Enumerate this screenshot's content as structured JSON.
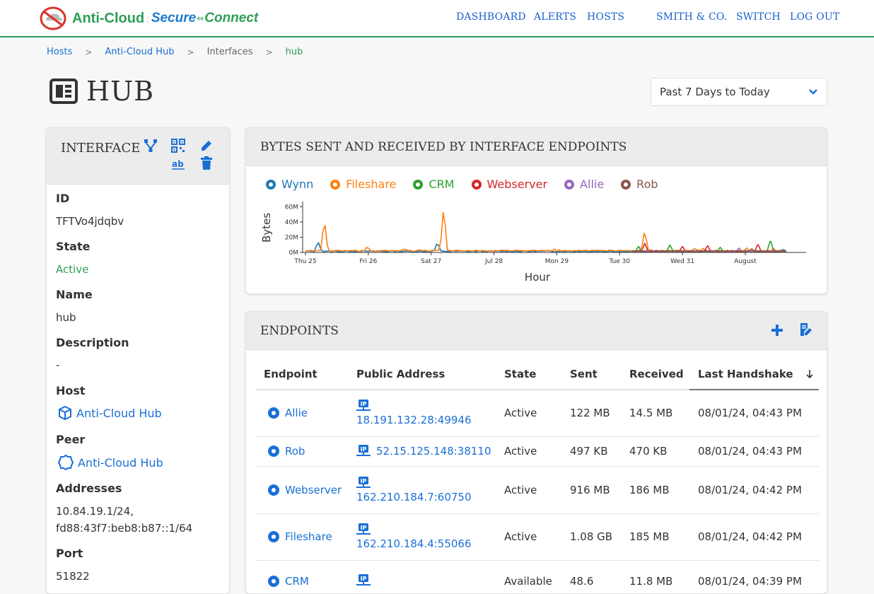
{
  "header": {
    "brand": {
      "part1": "Anti-Cloud",
      "sep": ":",
      "part2": "Secure",
      "part3": "Connect"
    },
    "nav": {
      "dashboard": "DASHBOARD",
      "alerts": "ALERTS",
      "hosts": "HOSTS",
      "org": "SMITH & CO.",
      "switch": "SWITCH",
      "logout": "LOG OUT"
    }
  },
  "breadcrumb": [
    {
      "label": "Hosts"
    },
    {
      "label": "Anti-Cloud Hub"
    },
    {
      "label": "Interfaces"
    },
    {
      "label": "hub"
    }
  ],
  "breadcrumb_sep": ">",
  "page": {
    "title": "HUB"
  },
  "range": {
    "value": "Past 7 Days to Today"
  },
  "interface": {
    "title": "INTERFACE",
    "fields": {
      "id_label": "ID",
      "id_value": "TFTVo4jdqbv",
      "state_label": "State",
      "state_value": "Active",
      "name_label": "Name",
      "name_value": "hub",
      "desc_label": "Description",
      "desc_value": "-",
      "host_label": "Host",
      "host_value": "Anti-Cloud Hub",
      "peer_label": "Peer",
      "peer_value": "Anti-Cloud Hub",
      "addr_label": "Addresses",
      "addr_value1": "10.84.19.1/24,",
      "addr_value2": "fd88:43f7:beb8:b87::1/64",
      "port_label": "Port",
      "port_value": "51822"
    }
  },
  "chart_section": {
    "title": "BYTES SENT AND RECEIVED BY INTERFACE ENDPOINTS"
  },
  "chart_data": {
    "type": "line",
    "title": "",
    "xlabel": "Hour",
    "ylabel": "Bytes",
    "ylim": [
      0,
      65000000
    ],
    "y_ticks": [
      "0M",
      "20M",
      "40M",
      "60M"
    ],
    "y_tick_values": [
      0,
      20000000,
      40000000,
      60000000
    ],
    "x_ticks": [
      "Thu 25",
      "Fri 26",
      "Sat 27",
      "Jul 28",
      "Mon 29",
      "Tue 30",
      "Wed 31",
      "August"
    ],
    "legend_position": "top",
    "series": [
      {
        "name": "Wynn",
        "color": "#1f77b4",
        "peaks": [
          [
            0.2,
            15000000
          ],
          [
            2.1,
            14000000
          ],
          [
            7.6,
            5000000
          ]
        ]
      },
      {
        "name": "Fileshare",
        "color": "#ff7f0e",
        "peaks": [
          [
            0.3,
            45000000
          ],
          [
            1.0,
            6000000
          ],
          [
            2.2,
            62000000
          ],
          [
            5.4,
            30000000
          ],
          [
            6.2,
            6000000
          ],
          [
            7.0,
            4000000
          ]
        ]
      },
      {
        "name": "CRM",
        "color": "#2ca02c",
        "peaks": [
          [
            5.3,
            8000000
          ],
          [
            5.8,
            10000000
          ],
          [
            6.6,
            7000000
          ],
          [
            7.4,
            16000000
          ]
        ]
      },
      {
        "name": "Webserver",
        "color": "#d62728",
        "peaks": [
          [
            5.4,
            12000000
          ],
          [
            6.0,
            8000000
          ],
          [
            6.4,
            9000000
          ],
          [
            7.2,
            11000000
          ]
        ]
      },
      {
        "name": "Allie",
        "color": "#9467bd",
        "peaks": [
          [
            6.9,
            6000000
          ]
        ]
      },
      {
        "name": "Rob",
        "color": "#8c564b",
        "peaks": [
          [
            7.1,
            5000000
          ]
        ]
      }
    ]
  },
  "endpoints": {
    "title": "ENDPOINTS",
    "columns": [
      "Endpoint",
      "Public Address",
      "State",
      "Sent",
      "Received",
      "Last Handshake"
    ],
    "rows": [
      {
        "name": "Allie",
        "address": "18.191.132.28:49946",
        "state": "Active",
        "sent": "122 MB",
        "received": "14.5 MB",
        "handshake": "08/01/24, 04:43 PM"
      },
      {
        "name": "Rob",
        "address": "52.15.125.148:38110",
        "state": "Active",
        "sent": "497 KB",
        "received": "470 KB",
        "handshake": "08/01/24, 04:43 PM"
      },
      {
        "name": "Webserver",
        "address": "162.210.184.7:60750",
        "state": "Active",
        "sent": "916 MB",
        "received": "186 MB",
        "handshake": "08/01/24, 04:42 PM"
      },
      {
        "name": "Fileshare",
        "address": "162.210.184.4:55066",
        "state": "Active",
        "sent": "1.08 GB",
        "received": "185 MB",
        "handshake": "08/01/24, 04:42 PM"
      },
      {
        "name": "CRM",
        "address": "",
        "state": "Available",
        "sent": "48.6",
        "received": "11.8 MB",
        "handshake": "08/01/24, 04:39 PM"
      }
    ]
  }
}
